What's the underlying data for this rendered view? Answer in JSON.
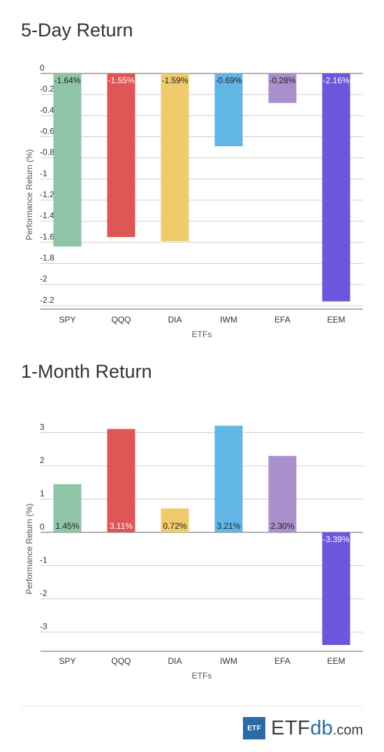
{
  "chart_data": [
    {
      "type": "bar",
      "title": "5-Day Return",
      "xlabel": "ETFs",
      "ylabel": "Performance Return (%)",
      "categories": [
        "SPY",
        "QQQ",
        "DIA",
        "IWM",
        "EFA",
        "EEM"
      ],
      "values": [
        -1.64,
        -1.55,
        -1.59,
        -0.69,
        -0.28,
        -2.16
      ],
      "data_labels": [
        "-1.64%",
        "-1.55%",
        "-1.59%",
        "-0.69%",
        "-0.28%",
        "-2.16%"
      ],
      "colors": [
        "#8fc5a6",
        "#de5656",
        "#f0cb6c",
        "#62b6e6",
        "#a98fcb",
        "#6e55de"
      ],
      "label_colors": [
        "#222222",
        "#ffffff",
        "#222222",
        "#222222",
        "#222222",
        "#ffffff"
      ],
      "ylim": [
        -2.3,
        0
      ],
      "yticks": [
        0,
        -0.2,
        -0.4,
        -0.6,
        -0.8,
        -1,
        -1.2,
        -1.4,
        -1.6,
        -1.8,
        -2,
        -2.2
      ],
      "ytick_labels": [
        "0",
        "-0.2",
        "-0.4",
        "-0.6",
        "-0.8",
        "-1",
        "-1.2",
        "-1.4",
        "-1.6",
        "-1.8",
        "-2",
        "-2.2"
      ],
      "grid": true
    },
    {
      "type": "bar",
      "title": "1-Month Return",
      "xlabel": "ETFs",
      "ylabel": "Performance Return (%)",
      "categories": [
        "SPY",
        "QQQ",
        "DIA",
        "IWM",
        "EFA",
        "EEM"
      ],
      "values": [
        1.45,
        3.11,
        0.72,
        3.21,
        2.3,
        -3.39
      ],
      "data_labels": [
        "1.45%",
        "3.11%",
        "0.72%",
        "3.21%",
        "2.30%",
        "-3.39%"
      ],
      "colors": [
        "#8fc5a6",
        "#de5656",
        "#f0cb6c",
        "#62b6e6",
        "#a98fcb",
        "#6e55de"
      ],
      "label_colors": [
        "#222222",
        "#ffffff",
        "#222222",
        "#222222",
        "#222222",
        "#ffffff"
      ],
      "ylim": [
        -3.6,
        3.4
      ],
      "yticks": [
        3,
        2,
        1,
        0,
        -1,
        -2,
        -3
      ],
      "ytick_labels": [
        "3",
        "2",
        "1",
        "0",
        "-1",
        "-2",
        "-3"
      ],
      "grid": true
    }
  ],
  "brand": {
    "box": "ETF",
    "name": "ETF",
    "db": "db",
    "com": ".com"
  }
}
